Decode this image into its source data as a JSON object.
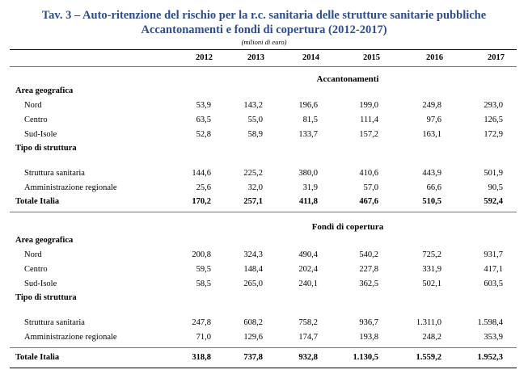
{
  "title_line1": "Tav. 3 – Auto-ritenzione del rischio per la r.c. sanitaria delle strutture sanitarie pubbliche",
  "title_line2": "Accantonamenti e fondi di copertura (2012-2017)",
  "unit": "(milioni di euro)",
  "years": [
    "2012",
    "2013",
    "2014",
    "2015",
    "2016",
    "2017"
  ],
  "accantonamenti": {
    "title": "Accantonamenti",
    "area_label": "Area geografica",
    "nord": {
      "label": "Nord",
      "values": [
        "53,9",
        "143,2",
        "196,6",
        "199,0",
        "249,8",
        "293,0"
      ]
    },
    "centro": {
      "label": "Centro",
      "values": [
        "63,5",
        "55,0",
        "81,5",
        "111,4",
        "97,6",
        "126,5"
      ]
    },
    "sud": {
      "label": "Sud-Isole",
      "values": [
        "52,8",
        "58,9",
        "133,7",
        "157,2",
        "163,1",
        "172,9"
      ]
    },
    "tipo_label": "Tipo di struttura",
    "struttura": {
      "label": "Struttura sanitaria",
      "values": [
        "144,6",
        "225,2",
        "380,0",
        "410,6",
        "443,9",
        "501,9"
      ]
    },
    "amministrazione": {
      "label": "Amministrazione regionale",
      "values": [
        "25,6",
        "32,0",
        "31,9",
        "57,0",
        "66,6",
        "90,5"
      ]
    },
    "totale": {
      "label": "Totale Italia",
      "values": [
        "170,2",
        "257,1",
        "411,8",
        "467,6",
        "510,5",
        "592,4"
      ]
    }
  },
  "fondi": {
    "title": "Fondi di copertura",
    "area_label": "Area geografica",
    "nord": {
      "label": "Nord",
      "values": [
        "200,8",
        "324,3",
        "490,4",
        "540,2",
        "725,2",
        "931,7"
      ]
    },
    "centro": {
      "label": "Centro",
      "values": [
        "59,5",
        "148,4",
        "202,4",
        "227,8",
        "331,9",
        "417,1"
      ]
    },
    "sud": {
      "label": "Sud-Isole",
      "values": [
        "58,5",
        "265,0",
        "240,1",
        "362,5",
        "502,1",
        "603,5"
      ]
    },
    "tipo_label": "Tipo di struttura",
    "struttura": {
      "label": "Struttura sanitaria",
      "values": [
        "247,8",
        "608,2",
        "758,2",
        "936,7",
        "1.311,0",
        "1.598,4"
      ]
    },
    "amministrazione": {
      "label": "Amministrazione regionale",
      "values": [
        "71,0",
        "129,6",
        "174,7",
        "193,8",
        "248,2",
        "353,9"
      ]
    },
    "totale": {
      "label": "Totale Italia",
      "values": [
        "318,8",
        "737,8",
        "932,8",
        "1.130,5",
        "1.559,2",
        "1.952,3"
      ]
    }
  }
}
